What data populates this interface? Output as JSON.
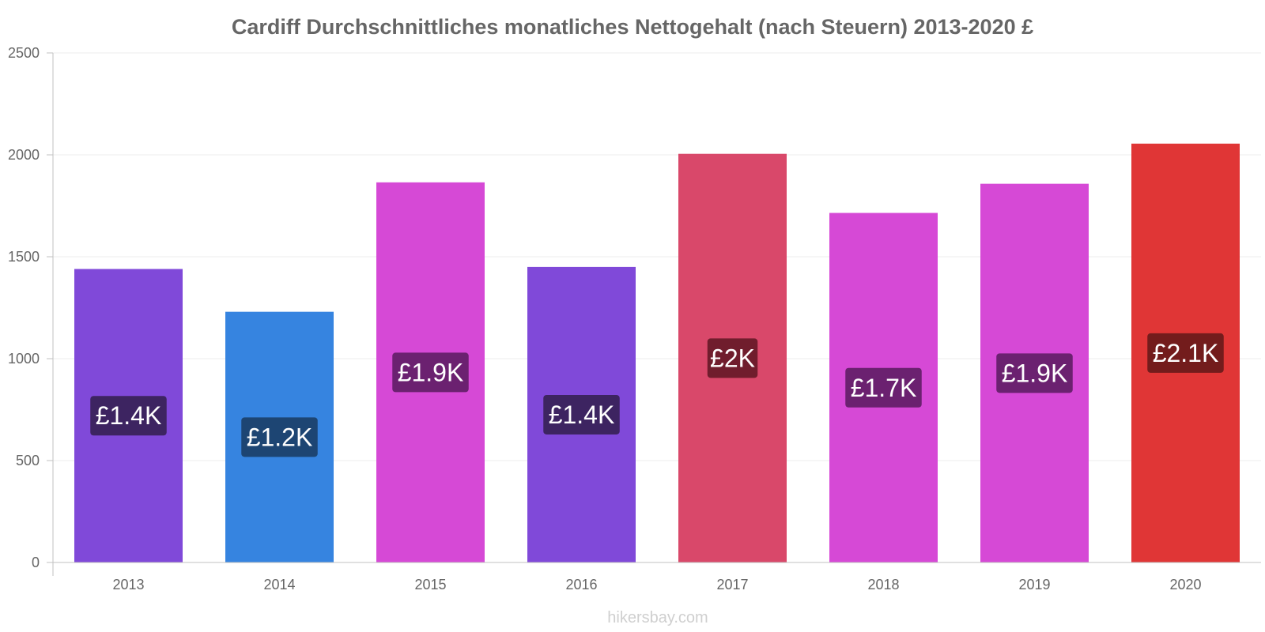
{
  "chart_data": {
    "type": "bar",
    "title": "Cardiff Durchschnittliches monatliches Nettogehalt (nach Steuern) 2013-2020 £",
    "categories": [
      "2013",
      "2014",
      "2015",
      "2016",
      "2017",
      "2018",
      "2019",
      "2020"
    ],
    "values": [
      1440,
      1230,
      1865,
      1450,
      2005,
      1715,
      1858,
      2055
    ],
    "value_labels": [
      "£1.4K",
      "£1.2K",
      "£1.9K",
      "£1.4K",
      "£2K",
      "£1.7K",
      "£1.9K",
      "£2.1K"
    ],
    "bar_colors": [
      "#8049d9",
      "#3684e0",
      "#d649d6",
      "#8049d9",
      "#d9486a",
      "#d649d6",
      "#d649d6",
      "#e03636"
    ],
    "label_bg_colors": [
      "#3d2461",
      "#1d4573",
      "#6b2170",
      "#3d2461",
      "#701d2d",
      "#6b2170",
      "#6b2170",
      "#731c1c"
    ],
    "ylim": [
      0,
      2500
    ],
    "yticks": [
      0,
      500,
      1000,
      1500,
      2000,
      2500
    ],
    "ytick_labels": [
      "0",
      "500",
      "1000",
      "1500",
      "2000",
      "2500"
    ],
    "grid": true,
    "xlabel": "",
    "ylabel": ""
  },
  "credit": "hikersbay.com"
}
